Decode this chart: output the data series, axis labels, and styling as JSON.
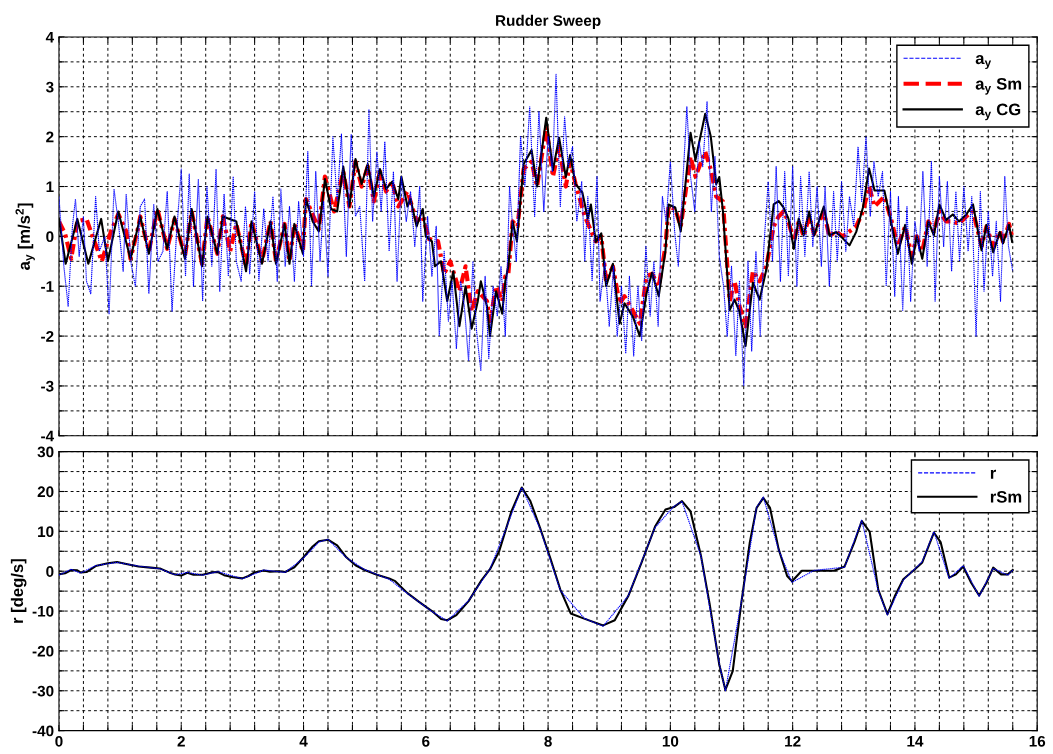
{
  "chart_data": [
    {
      "type": "line",
      "title": "Rudder Sweep",
      "ylabel": "a$_{y}$ [m/s$^{2}$]",
      "xlim": [
        0,
        16
      ],
      "ylim": [
        -4,
        4
      ],
      "xticks": [
        0,
        {
          "value": 0.4,
          "label": null
        },
        {
          "value": 0.8,
          "label": null
        },
        {
          "value": 1.2,
          "label": null
        },
        {
          "value": 1.6,
          "label": null
        },
        2,
        {
          "value": 2.4,
          "label": null
        },
        {
          "value": 2.8,
          "label": null
        },
        {
          "value": 3.2,
          "label": null
        },
        {
          "value": 3.6,
          "label": null
        },
        4,
        {
          "value": 4.4,
          "label": null
        },
        {
          "value": 4.8,
          "label": null
        },
        {
          "value": 5.2,
          "label": null
        },
        {
          "value": 5.6,
          "label": null
        },
        6,
        {
          "value": 6.4,
          "label": null
        },
        {
          "value": 6.8,
          "label": null
        },
        {
          "value": 7.2,
          "label": null
        },
        {
          "value": 7.6,
          "label": null
        },
        8,
        {
          "value": 8.4,
          "label": null
        },
        {
          "value": 8.8,
          "label": null
        },
        {
          "value": 9.2,
          "label": null
        },
        {
          "value": 9.6,
          "label": null
        },
        10,
        {
          "value": 10.4,
          "label": null
        },
        {
          "value": 10.8,
          "label": null
        },
        {
          "value": 11.2,
          "label": null
        },
        {
          "value": 11.6,
          "label": null
        },
        12,
        {
          "value": 12.4,
          "label": null
        },
        {
          "value": 12.8,
          "label": null
        },
        {
          "value": 13.2,
          "label": null
        },
        {
          "value": 13.6,
          "label": null
        },
        14,
        {
          "value": 14.4,
          "label": null
        },
        {
          "value": 14.8,
          "label": null
        },
        {
          "value": 15.2,
          "label": null
        },
        {
          "value": 15.6,
          "label": null
        },
        16
      ],
      "yticks": [
        -4,
        {
          "value": -3.5,
          "label": null
        },
        -3,
        {
          "value": -2.5,
          "label": null
        },
        -2,
        {
          "value": -1.5,
          "label": null
        },
        -1,
        {
          "value": -0.5,
          "label": null
        },
        0,
        {
          "value": 0.5,
          "label": null
        },
        1,
        {
          "value": 1.5,
          "label": null
        },
        2,
        {
          "value": 2.5,
          "label": null
        },
        3,
        {
          "value": 3.5,
          "label": null
        },
        4
      ],
      "tick_labels": "y",
      "grid": true,
      "legend": "top right",
      "marker": "none",
      "series": [
        {
          "name": "a$_{y}$",
          "color": "#0000ff",
          "line_style": "dotted",
          "x": [
            0.0,
            0.08,
            0.15,
            0.22,
            0.27,
            0.33,
            0.4,
            0.45,
            0.52,
            0.6,
            0.66,
            0.75,
            0.82,
            0.9,
            0.97,
            1.05,
            1.1,
            1.18,
            1.25,
            1.33,
            1.4,
            1.47,
            1.55,
            1.62,
            1.7,
            1.77,
            1.85,
            1.92,
            2.0,
            2.07,
            2.13,
            2.2,
            2.28,
            2.35,
            2.42,
            2.5,
            2.57,
            2.63,
            2.7,
            2.77,
            2.85,
            2.9,
            2.98,
            3.05,
            3.12,
            3.2,
            3.27,
            3.35,
            3.42,
            3.5,
            3.57,
            3.63,
            3.7,
            3.77,
            3.85,
            3.92,
            4.0,
            4.07,
            4.13,
            4.2,
            4.27,
            4.33,
            4.4,
            4.48,
            4.55,
            4.62,
            4.7,
            4.78,
            4.85,
            4.92,
            5.0,
            5.07,
            5.13,
            5.2,
            5.27,
            5.33,
            5.4,
            5.47,
            5.53,
            5.6,
            5.68,
            5.75,
            5.82,
            5.9,
            5.95,
            6.03,
            6.1,
            6.17,
            6.22,
            6.3,
            6.37,
            6.43,
            6.5,
            6.57,
            6.63,
            6.7,
            6.77,
            6.83,
            6.9,
            6.97,
            7.03,
            7.1,
            7.17,
            7.23,
            7.3,
            7.37,
            7.42,
            7.48,
            7.55,
            7.62,
            7.7,
            7.78,
            7.85,
            7.93,
            8.0,
            8.07,
            8.13,
            8.2,
            8.27,
            8.33,
            8.4,
            8.47,
            8.55,
            8.6,
            8.65,
            8.72,
            8.8,
            8.85,
            8.93,
            9.0,
            9.07,
            9.13,
            9.2,
            9.27,
            9.33,
            9.4,
            9.47,
            9.53,
            9.6,
            9.67,
            9.73,
            9.8,
            9.87,
            9.93,
            10.0,
            10.07,
            10.13,
            10.2,
            10.27,
            10.33,
            10.4,
            10.47,
            10.53,
            10.6,
            10.67,
            10.73,
            10.8,
            10.87,
            10.93,
            11.0,
            11.07,
            11.13,
            11.2,
            11.27,
            11.33,
            11.4,
            11.47,
            11.53,
            11.6,
            11.67,
            11.73,
            11.8,
            11.87,
            11.93,
            12.0,
            12.07,
            12.13,
            12.2,
            12.27,
            12.33,
            12.4,
            12.47,
            12.53,
            12.6,
            12.67,
            12.73,
            12.8,
            12.87,
            12.93,
            13.0,
            13.07,
            13.13,
            13.2,
            13.27,
            13.33,
            13.4,
            13.47,
            13.53,
            13.6,
            13.67,
            13.73,
            13.8,
            13.87,
            13.93,
            14.0,
            14.07,
            14.13,
            14.2,
            14.27,
            14.33,
            14.4,
            14.47,
            14.53,
            14.6,
            14.67,
            14.73,
            14.8,
            14.87,
            14.93,
            15.0,
            15.07,
            15.13,
            15.2,
            15.27,
            15.33,
            15.4,
            15.47,
            15.53,
            15.6
          ],
          "values": [
            0.8,
            -0.6,
            -1.4,
            0.2,
            0.75,
            -0.4,
            0.4,
            -0.9,
            -1.15,
            0.8,
            -0.3,
            0.0,
            -1.55,
            0.95,
            0.3,
            -0.7,
            0.85,
            -0.55,
            -1.0,
            0.6,
            0.75,
            -1.15,
            0.65,
            -0.5,
            -0.3,
            0.9,
            -1.5,
            0.0,
            1.35,
            -0.8,
            1.25,
            -1.0,
            1.15,
            -1.3,
            1.0,
            -0.6,
            1.35,
            -1.1,
            0.85,
            -0.8,
            1.2,
            -0.5,
            -0.9,
            0.6,
            -0.75,
            0.9,
            -0.9,
            0.55,
            -0.5,
            0.8,
            -0.9,
            0.95,
            -0.6,
            0.6,
            -0.9,
            0.7,
            -0.4,
            1.7,
            -1.0,
            1.3,
            -0.5,
            0.7,
            -0.8,
            2.0,
            0.7,
            2.05,
            -0.4,
            2.05,
            0.4,
            0.6,
            -0.9,
            2.55,
            0.3,
            1.7,
            0.5,
            1.9,
            -0.3,
            1.3,
            -0.9,
            1.2,
            0.3,
            0.9,
            -0.2,
            1.0,
            -1.3,
            0.4,
            -0.8,
            0.2,
            -2.0,
            -0.3,
            -1.7,
            -0.9,
            -2.25,
            -0.9,
            -1.4,
            -2.5,
            -0.5,
            -1.9,
            -2.7,
            -0.8,
            -2.45,
            -1.0,
            -1.6,
            -0.6,
            -2.0,
            1.0,
            0.2,
            -0.5,
            2.0,
            1.0,
            2.6,
            0.4,
            2.5,
            0.5,
            2.0,
            1.3,
            3.25,
            0.6,
            2.4,
            1.4,
            1.8,
            0.3,
            1.1,
            -0.5,
            0.8,
            -0.9,
            1.2,
            -1.3,
            -0.5,
            -1.8,
            -0.6,
            -2.0,
            -1.0,
            -2.35,
            -0.8,
            -2.4,
            -1.0,
            -2.1,
            -0.2,
            -1.6,
            -0.5,
            -1.8,
            0.8,
            0.3,
            1.5,
            0.1,
            -0.6,
            1.0,
            2.6,
            1.2,
            0.5,
            1.9,
            1.4,
            2.7,
            0.5,
            1.6,
            -0.4,
            -1.0,
            -2.0,
            -0.6,
            -2.4,
            -0.9,
            -3.0,
            -0.5,
            -2.3,
            -0.3,
            -2.0,
            -0.2,
            1.1,
            -0.5,
            1.4,
            -0.9,
            1.3,
            -0.8,
            1.4,
            -1.0,
            1.2,
            -0.4,
            1.3,
            -0.2,
            1.0,
            -0.6,
            1.0,
            -1.0,
            0.9,
            -0.5,
            1.1,
            -0.3,
            0.8,
            0.2,
            1.8,
            0.7,
            2.0,
            0.4,
            1.5,
            0.8,
            1.3,
            -1.0,
            0.9,
            -1.2,
            0.8,
            -1.5,
            0.6,
            -1.3,
            0.3,
            -0.3,
            1.3,
            -0.6,
            1.5,
            -1.3,
            1.2,
            -0.2,
            1.1,
            -0.7,
            0.9,
            -0.5,
            1.0,
            -0.3,
            0.8,
            -2.0,
            0.9,
            -1.1,
            0.5,
            -0.8,
            0.3,
            -1.3,
            1.2,
            -0.2,
            -0.7
          ]
        },
        {
          "name": "a$_{y}$ Sm",
          "color": "#ff0000",
          "line_style": "dashdot",
          "x": [
            0,
            0.1,
            0.2,
            0.3,
            0.45,
            0.55,
            0.7,
            0.85,
            0.97,
            1.1,
            1.17,
            1.3,
            1.33,
            1.47,
            1.61,
            1.77,
            1.89,
            2.06,
            2.17,
            2.34,
            2.43,
            2.59,
            2.68,
            2.8,
            2.9,
            3.06,
            3.15,
            3.32,
            3.46,
            3.55,
            3.69,
            3.77,
            3.85,
            3.99,
            4.04,
            4.25,
            4.35,
            4.5,
            4.65,
            4.75,
            4.85,
            4.95,
            5.05,
            5.15,
            5.25,
            5.35,
            5.45,
            5.55,
            5.7,
            5.85,
            5.95,
            6.05,
            6.2,
            6.3,
            6.4,
            6.55,
            6.65,
            6.75,
            6.85,
            7.0,
            7.05,
            7.15,
            7.25,
            7.3,
            7.35,
            7.42,
            7.5,
            7.6,
            7.73,
            7.82,
            7.97,
            8.08,
            8.18,
            8.29,
            8.36,
            8.45,
            8.6,
            8.78,
            8.87,
            8.95,
            9.06,
            9.17,
            9.25,
            9.39,
            9.5,
            9.61,
            9.7,
            9.81,
            9.92,
            9.97,
            10.08,
            10.17,
            10.33,
            10.41,
            10.57,
            10.66,
            10.75,
            10.86,
            10.97,
            11.05,
            11.13,
            11.23,
            11.35,
            11.46,
            11.57,
            11.69,
            11.77,
            11.85,
            11.93,
            12.02,
            12.1,
            12.18,
            12.27,
            12.35,
            12.51,
            12.6,
            12.71,
            12.82,
            12.93,
            13.04,
            13.15,
            13.25,
            13.34,
            13.5,
            13.62,
            13.72,
            13.84,
            13.95,
            14.03,
            14.12,
            14.22,
            14.31,
            14.4,
            14.51,
            14.62,
            14.72,
            14.84,
            14.95,
            15.09,
            15.17,
            15.28,
            15.39,
            15.44,
            15.54,
            15.59
          ],
          "values": [
            0.3,
            0.05,
            -0.45,
            0.3,
            0.35,
            0.0,
            -0.5,
            0.1,
            0.45,
            0.1,
            -0.45,
            0.2,
            0.4,
            -0.3,
            0.55,
            -0.25,
            0.35,
            -0.4,
            0.5,
            -0.55,
            0.4,
            -0.35,
            0.4,
            -0.3,
            0.25,
            -0.6,
            0.3,
            -0.5,
            0.3,
            -0.5,
            0.25,
            -0.5,
            0.25,
            -0.3,
            0.75,
            0.15,
            1.2,
            0.5,
            1.3,
            0.6,
            1.5,
            1.0,
            1.4,
            0.7,
            1.3,
            0.9,
            1.1,
            0.6,
            0.9,
            0.3,
            0.4,
            -0.05,
            -0.1,
            -0.75,
            -0.5,
            -1.1,
            -0.6,
            -1.5,
            -1.1,
            -1.3,
            -1.7,
            -1.0,
            -1.3,
            -0.8,
            -0.75,
            0.3,
            0.2,
            1.35,
            1.5,
            1.0,
            2.2,
            1.2,
            1.8,
            1.0,
            1.5,
            1.05,
            0.4,
            -0.1,
            0.0,
            -0.9,
            -0.6,
            -1.35,
            -1.2,
            -1.5,
            -1.75,
            -0.8,
            -0.75,
            -1.0,
            -0.2,
            0.6,
            0.55,
            0.2,
            1.6,
            1.2,
            1.7,
            1.35,
            0.8,
            0.7,
            -1.3,
            -0.9,
            -1.4,
            -1.8,
            -0.7,
            -0.9,
            -0.6,
            0.2,
            0.4,
            0.5,
            0.3,
            -0.1,
            0.3,
            0.0,
            0.4,
            0.05,
            0.5,
            0.0,
            0.1,
            0.0,
            0.1,
            0.2,
            0.5,
            1.0,
            0.6,
            0.8,
            0.3,
            -0.2,
            0.2,
            -0.4,
            0.0,
            -0.3,
            0.3,
            0.1,
            0.5,
            0.3,
            0.3,
            0.25,
            0.4,
            0.5,
            -0.2,
            0.2,
            -0.2,
            0.1,
            -0.1,
            0.25,
            0.0
          ]
        },
        {
          "name": "a$_{y}$ CG",
          "color": "#000000",
          "line_style": "solid",
          "x": [
            0,
            0.11,
            0.3,
            0.48,
            0.69,
            0.8,
            0.97,
            1.17,
            1.33,
            1.47,
            1.61,
            1.77,
            1.89,
            2.06,
            2.17,
            2.34,
            2.43,
            2.59,
            2.68,
            2.9,
            3.06,
            3.15,
            3.32,
            3.46,
            3.55,
            3.69,
            3.77,
            3.85,
            3.99,
            4.04,
            4.15,
            4.25,
            4.35,
            4.45,
            4.55,
            4.65,
            4.75,
            4.85,
            4.95,
            5.05,
            5.15,
            5.25,
            5.35,
            5.45,
            5.55,
            5.6,
            5.7,
            5.75,
            5.85,
            5.95,
            6.0,
            6.1,
            6.15,
            6.25,
            6.35,
            6.45,
            6.55,
            6.65,
            6.75,
            6.85,
            6.9,
            7.0,
            7.05,
            7.15,
            7.25,
            7.3,
            7.35,
            7.42,
            7.49,
            7.6,
            7.73,
            7.82,
            7.97,
            8.08,
            8.18,
            8.29,
            8.36,
            8.45,
            8.56,
            8.65,
            8.7,
            8.78,
            8.87,
            8.95,
            9.06,
            9.17,
            9.25,
            9.39,
            9.5,
            9.61,
            9.7,
            9.81,
            9.92,
            9.97,
            10.08,
            10.17,
            10.33,
            10.41,
            10.57,
            10.66,
            10.75,
            10.8,
            10.86,
            10.97,
            11.05,
            11.13,
            11.23,
            11.35,
            11.46,
            11.57,
            11.69,
            11.77,
            11.85,
            11.93,
            12.02,
            12.1,
            12.18,
            12.27,
            12.35,
            12.51,
            12.6,
            12.71,
            12.82,
            12.93,
            13.04,
            13.15,
            13.25,
            13.34,
            13.5,
            13.62,
            13.72,
            13.84,
            13.95,
            14.03,
            14.12,
            14.22,
            14.31,
            14.4,
            14.51,
            14.62,
            14.72,
            14.84,
            14.95,
            15.09,
            15.17,
            15.28,
            15.39,
            15.44,
            15.54,
            15.59
          ],
          "values": [
            0.35,
            -0.55,
            0.35,
            -0.55,
            0.35,
            -0.5,
            0.5,
            -0.45,
            0.4,
            -0.35,
            0.55,
            -0.25,
            0.4,
            -0.45,
            0.55,
            -0.6,
            0.4,
            -0.35,
            0.4,
            0.3,
            -0.7,
            0.3,
            -0.55,
            0.3,
            -0.55,
            0.25,
            -0.55,
            0.25,
            -0.35,
            0.75,
            0.3,
            0.1,
            1.15,
            0.55,
            0.5,
            1.4,
            0.6,
            1.55,
            1.05,
            1.45,
            0.8,
            1.35,
            0.95,
            1.1,
            0.75,
            1.2,
            0.6,
            0.75,
            0.2,
            0.55,
            0.0,
            -0.1,
            -0.6,
            -0.5,
            -1.3,
            -0.7,
            -1.8,
            -1.0,
            -1.85,
            -1.3,
            -0.9,
            -1.4,
            -2.0,
            -1.1,
            -1.55,
            -0.9,
            -0.6,
            0.3,
            -0.1,
            1.45,
            1.73,
            1.0,
            2.38,
            1.33,
            1.98,
            1.19,
            1.63,
            1.05,
            0.88,
            0.36,
            0.64,
            -0.11,
            0.06,
            -1.0,
            -0.55,
            -1.75,
            -1.34,
            -1.62,
            -2.0,
            -1.14,
            -0.73,
            -1.2,
            -0.28,
            0.64,
            0.58,
            0.1,
            2.08,
            1.53,
            2.46,
            2.01,
            1.05,
            1.19,
            0.5,
            -1.48,
            -1.27,
            -1.51,
            -2.2,
            -0.93,
            -1.27,
            -0.66,
            0.64,
            0.71,
            0.58,
            0.36,
            -0.25,
            0.36,
            0.02,
            0.5,
            0.02,
            0.6,
            0.02,
            0.09,
            -0.04,
            -0.18,
            0.09,
            0.58,
            1.36,
            0.92,
            0.92,
            0.23,
            -0.35,
            0.23,
            -0.55,
            0.0,
            -0.45,
            0.3,
            0.02,
            0.64,
            0.33,
            0.44,
            0.3,
            0.44,
            0.64,
            -0.28,
            0.23,
            -0.32,
            0.09,
            -0.14,
            0.23,
            -0.11
          ]
        }
      ]
    },
    {
      "type": "line",
      "xlabel": null,
      "ylabel": "r [deg/s]",
      "xlim": [
        0,
        16
      ],
      "ylim": [
        -40,
        30
      ],
      "xticks": [
        0,
        {
          "value": 0.4,
          "label": null
        },
        {
          "value": 0.8,
          "label": null
        },
        {
          "value": 1.2,
          "label": null
        },
        {
          "value": 1.6,
          "label": null
        },
        2,
        {
          "value": 2.4,
          "label": null
        },
        {
          "value": 2.8,
          "label": null
        },
        {
          "value": 3.2,
          "label": null
        },
        {
          "value": 3.6,
          "label": null
        },
        4,
        {
          "value": 4.4,
          "label": null
        },
        {
          "value": 4.8,
          "label": null
        },
        {
          "value": 5.2,
          "label": null
        },
        {
          "value": 5.6,
          "label": null
        },
        6,
        {
          "value": 6.4,
          "label": null
        },
        {
          "value": 6.8,
          "label": null
        },
        {
          "value": 7.2,
          "label": null
        },
        {
          "value": 7.6,
          "label": null
        },
        8,
        {
          "value": 8.4,
          "label": null
        },
        {
          "value": 8.8,
          "label": null
        },
        {
          "value": 9.2,
          "label": null
        },
        {
          "value": 9.6,
          "label": null
        },
        10,
        {
          "value": 10.4,
          "label": null
        },
        {
          "value": 10.8,
          "label": null
        },
        {
          "value": 11.2,
          "label": null
        },
        {
          "value": 11.6,
          "label": null
        },
        12,
        {
          "value": 12.4,
          "label": null
        },
        {
          "value": 12.8,
          "label": null
        },
        {
          "value": 13.2,
          "label": null
        },
        {
          "value": 13.6,
          "label": null
        },
        14,
        {
          "value": 14.4,
          "label": null
        },
        {
          "value": 14.8,
          "label": null
        },
        {
          "value": 15.2,
          "label": null
        },
        {
          "value": 15.6,
          "label": null
        },
        16
      ],
      "yticks": [
        -40,
        {
          "value": -35,
          "label": null
        },
        -30,
        {
          "value": -25,
          "label": null
        },
        -20,
        {
          "value": -15,
          "label": null
        },
        -10,
        {
          "value": -5,
          "label": null
        },
        0,
        {
          "value": 5,
          "label": null
        },
        10,
        {
          "value": 15,
          "label": null
        },
        20,
        {
          "value": 25,
          "label": null
        },
        30
      ],
      "grid": true,
      "legend": "top right",
      "marker": "none",
      "series": [
        {
          "name": "r",
          "color": "#0000ff",
          "line_style": "dotted",
          "x": [
            0,
            0.2,
            0.35,
            0.6,
            0.95,
            1.3,
            1.65,
            1.9,
            2.1,
            2.35,
            2.6,
            3.0,
            3.35,
            3.7,
            4.0,
            4.25,
            4.4,
            4.7,
            5.0,
            5.4,
            5.7,
            6.1,
            6.35,
            6.7,
            7.05,
            7.3,
            7.57,
            7.87,
            8.2,
            8.59,
            8.9,
            9.31,
            9.75,
            10.06,
            10.19,
            10.5,
            10.8,
            10.9,
            11.16,
            11.41,
            11.52,
            11.77,
            11.99,
            12.35,
            12.85,
            13.13,
            13.4,
            13.55,
            13.81,
            14.12,
            14.31,
            14.56,
            14.79,
            15.05,
            15.28,
            15.52,
            15.6
          ],
          "values": [
            -1.0,
            0.5,
            -0.5,
            1.4,
            2.2,
            1.3,
            0.6,
            -0.9,
            -0.3,
            -1.0,
            -0.1,
            -1.9,
            0.3,
            -0.3,
            3.3,
            7.3,
            8.0,
            3.4,
            0.4,
            -2.0,
            -5.6,
            -10.1,
            -12.5,
            -7.4,
            0.6,
            10.2,
            21.0,
            10.6,
            -4.8,
            -11.8,
            -13.8,
            -6.2,
            11.0,
            16.3,
            17.5,
            3.8,
            -23.2,
            -30.0,
            -7.8,
            16.0,
            18.6,
            5.4,
            -2.8,
            0.2,
            1.0,
            12.8,
            -4.8,
            -11.0,
            -2.2,
            2.4,
            9.9,
            -1.8,
            1.4,
            -6.3,
            0.7,
            -1.0,
            0.3
          ]
        },
        {
          "name": "rSm",
          "color": "#000000",
          "line_style": "solid",
          "x": [
            0,
            0.1,
            0.2,
            0.3,
            0.35,
            0.45,
            0.6,
            0.8,
            0.95,
            1.1,
            1.3,
            1.5,
            1.65,
            1.8,
            1.9,
            2.0,
            2.1,
            2.2,
            2.35,
            2.5,
            2.6,
            2.7,
            2.85,
            3.0,
            3.1,
            3.2,
            3.35,
            3.45,
            3.6,
            3.7,
            3.85,
            4.0,
            4.15,
            4.25,
            4.4,
            4.55,
            4.7,
            4.85,
            5.0,
            5.2,
            5.4,
            5.5,
            5.7,
            5.9,
            6.1,
            6.25,
            6.35,
            6.5,
            6.7,
            6.9,
            7.05,
            7.2,
            7.3,
            7.4,
            7.57,
            7.71,
            7.87,
            8.04,
            8.2,
            8.37,
            8.59,
            8.9,
            9.09,
            9.31,
            9.53,
            9.75,
            9.92,
            10.06,
            10.19,
            10.33,
            10.5,
            10.64,
            10.8,
            10.9,
            11.02,
            11.16,
            11.3,
            11.41,
            11.52,
            11.63,
            11.77,
            11.91,
            11.99,
            12.15,
            12.35,
            12.68,
            12.85,
            13.01,
            13.13,
            13.26,
            13.4,
            13.55,
            13.67,
            13.81,
            14.0,
            14.12,
            14.31,
            14.42,
            14.56,
            14.67,
            14.79,
            14.92,
            15.05,
            15.17,
            15.28,
            15.41,
            15.52,
            15.6
          ],
          "values": [
            -0.8,
            -0.5,
            0.3,
            0.2,
            -0.3,
            -0.2,
            1.3,
            2.0,
            2.3,
            1.8,
            1.2,
            0.9,
            0.7,
            -0.3,
            -0.8,
            -1.1,
            -0.4,
            -0.9,
            -0.9,
            -0.3,
            -0.2,
            -1.0,
            -1.5,
            -1.8,
            -1.2,
            -0.3,
            0.2,
            -0.1,
            0.0,
            -0.2,
            1.0,
            3.5,
            6.2,
            7.5,
            7.9,
            6.5,
            3.5,
            1.5,
            0.3,
            -0.9,
            -1.8,
            -2.5,
            -5.5,
            -7.8,
            -10.0,
            -12.0,
            -12.3,
            -11.0,
            -7.5,
            -2.5,
            0.5,
            5.0,
            10.0,
            15.0,
            21.0,
            17.6,
            10.8,
            3.1,
            -4.6,
            -10.6,
            -11.9,
            -13.6,
            -12.3,
            -6.3,
            2.2,
            11.2,
            15.5,
            16.1,
            17.6,
            15.0,
            3.9,
            -8.0,
            -23.4,
            -29.8,
            -25.1,
            -8.0,
            7.3,
            15.9,
            18.4,
            15.9,
            5.6,
            -1.2,
            -2.5,
            0.1,
            0.1,
            0.1,
            1.2,
            7.3,
            12.6,
            9.9,
            -4.6,
            -10.8,
            -6.3,
            -2.0,
            0.5,
            2.2,
            9.7,
            7.3,
            -1.6,
            -0.8,
            1.2,
            -2.9,
            -6.1,
            -2.9,
            0.9,
            -0.8,
            -0.8,
            0.3
          ]
        }
      ]
    }
  ]
}
